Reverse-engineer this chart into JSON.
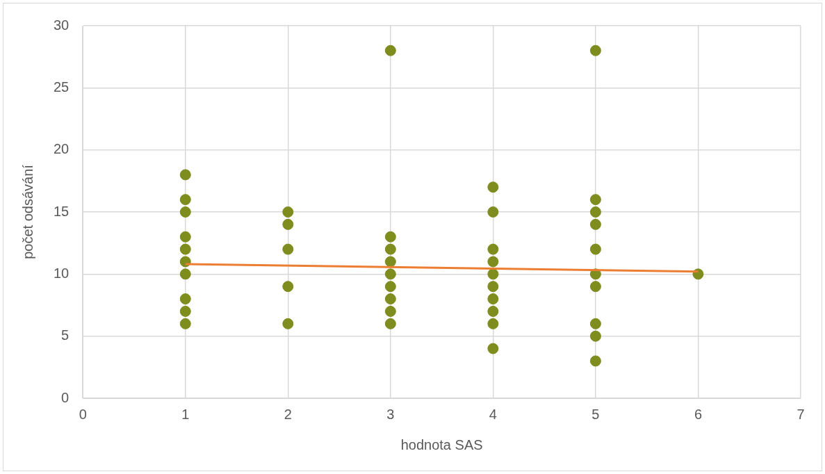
{
  "chart_data": {
    "type": "scatter",
    "xlabel": "hodnota SAS",
    "ylabel": "počet odsávání",
    "xlim": [
      0,
      7
    ],
    "xticks": [
      0,
      1,
      2,
      3,
      4,
      5,
      6,
      7
    ],
    "ylim": [
      0,
      30
    ],
    "yticks": [
      0,
      5,
      10,
      15,
      20,
      25,
      30
    ],
    "grid": true,
    "legend": false,
    "marker": "circle",
    "series": [
      {
        "type": "scatter",
        "color": "#7f8c1e",
        "x": [
          1,
          1,
          1,
          1,
          1,
          1,
          1,
          1,
          1,
          1,
          2,
          2,
          2,
          2,
          2,
          3,
          3,
          3,
          3,
          3,
          3,
          3,
          3,
          3,
          4,
          4,
          4,
          4,
          4,
          4,
          4,
          4,
          4,
          4,
          5,
          5,
          5,
          5,
          5,
          5,
          5,
          5,
          5,
          5,
          6
        ],
        "values": [
          18,
          16,
          15,
          13,
          12,
          11,
          10,
          8,
          7,
          6,
          15,
          14,
          12,
          9,
          6,
          28,
          13,
          12,
          11,
          10,
          9,
          8,
          7,
          6,
          17,
          15,
          12,
          11,
          10,
          9,
          8,
          7,
          6,
          4,
          28,
          16,
          15,
          14,
          12,
          10,
          9,
          6,
          5,
          3,
          10
        ]
      },
      {
        "type": "line",
        "color": "#ed7d31",
        "marker": "none",
        "x": [
          1,
          6
        ],
        "values": [
          10.8,
          10.2
        ]
      }
    ]
  }
}
